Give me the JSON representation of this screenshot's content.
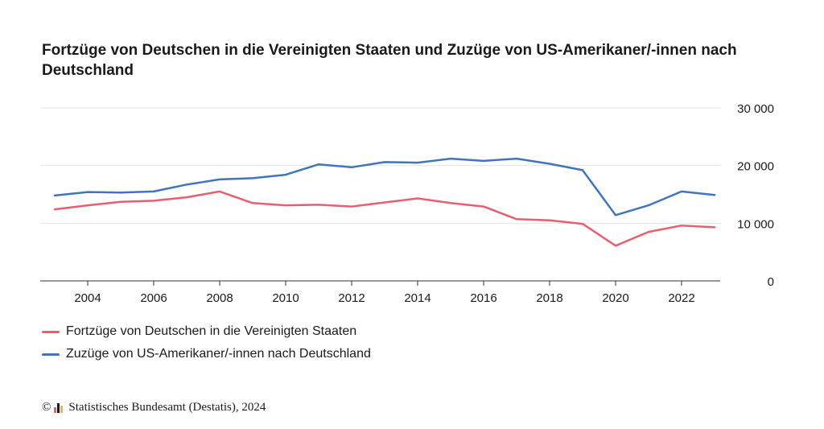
{
  "chart_data": {
    "type": "line",
    "title": "Fortzüge von Deutschen in die Vereinigten Staaten und Zuzüge von US-Amerikaner/-innen nach Deutschland",
    "x": [
      2003,
      2004,
      2005,
      2006,
      2007,
      2008,
      2009,
      2010,
      2011,
      2012,
      2013,
      2014,
      2015,
      2016,
      2017,
      2018,
      2019,
      2020,
      2021,
      2022,
      2023
    ],
    "x_tick_labels": [
      "2004",
      "2006",
      "2008",
      "2010",
      "2012",
      "2014",
      "2016",
      "2018",
      "2020",
      "2022"
    ],
    "x_ticks": [
      2004,
      2006,
      2008,
      2010,
      2012,
      2014,
      2016,
      2018,
      2020,
      2022
    ],
    "xlim": [
      2003,
      2023
    ],
    "ylim": [
      0,
      30000
    ],
    "y_ticks": [
      0,
      10000,
      20000,
      30000
    ],
    "y_tick_labels": [
      "0",
      "10 000",
      "20 000",
      "30 000"
    ],
    "y_axis_position": "right",
    "grid": true,
    "legend_position": "bottom-left",
    "series": [
      {
        "name": "Fortzüge von Deutschen in die Vereinigten Staaten",
        "color": "#e8606f",
        "values": [
          12400,
          13100,
          13700,
          13900,
          14500,
          15500,
          13500,
          13100,
          13200,
          12900,
          13600,
          14300,
          13500,
          12900,
          10700,
          10500,
          9900,
          6100,
          8500,
          9600,
          9300
        ]
      },
      {
        "name": "Zuzüge von US-Amerikaner/-innen nach Deutschland",
        "color": "#3f75c0",
        "values": [
          14800,
          15400,
          15300,
          15500,
          16700,
          17600,
          17800,
          18400,
          20200,
          19700,
          20600,
          20500,
          21200,
          20800,
          21200,
          20300,
          19200,
          11400,
          13100,
          15500,
          14900
        ]
      }
    ]
  },
  "footer": {
    "copyright_symbol": "©",
    "text": "Statistisches Bundesamt (Destatis), 2024",
    "logo_colors": [
      "#e8606f",
      "#1a1a1a",
      "#f2b531"
    ]
  }
}
